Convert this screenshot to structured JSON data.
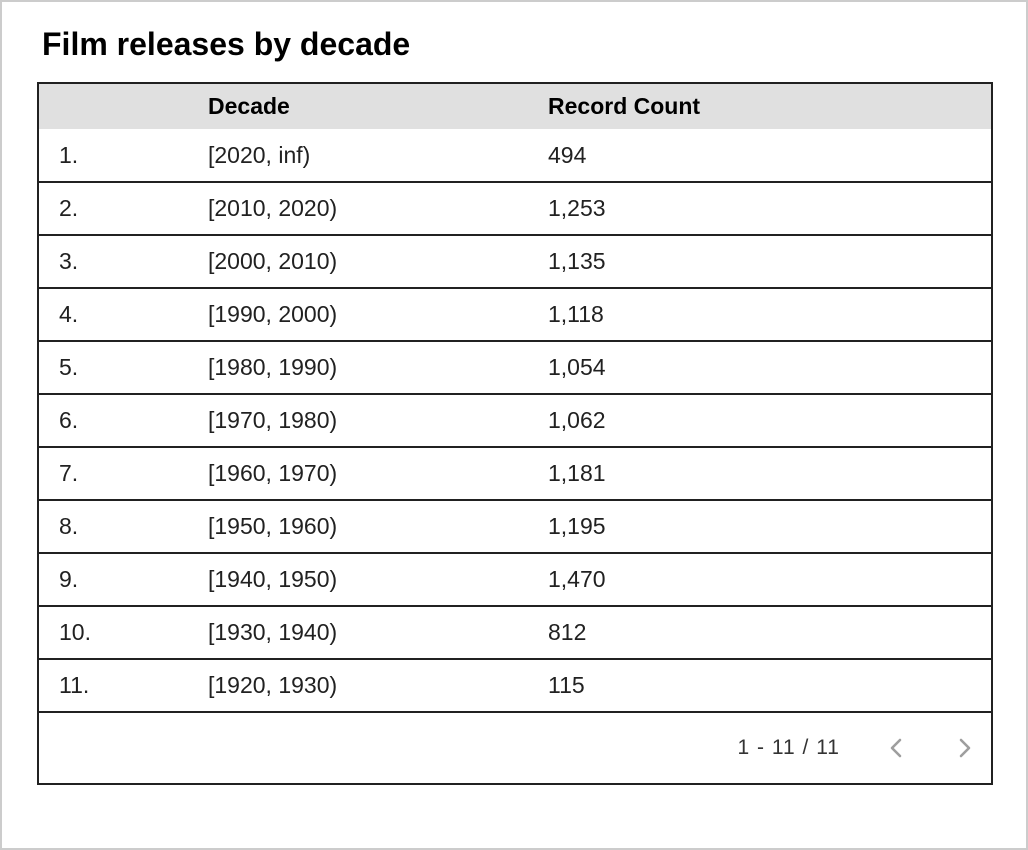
{
  "page": {
    "title": "Film releases by decade",
    "border_color": "#cccccc",
    "background": "#ffffff"
  },
  "table": {
    "header_bg": "#e0e0e0",
    "border_color": "#212121",
    "columns": [
      {
        "key": "index",
        "label": ""
      },
      {
        "key": "decade",
        "label": "Decade"
      },
      {
        "key": "record_count",
        "label": "Record Count"
      }
    ],
    "rows": [
      {
        "index": "1.",
        "decade": "[2020, inf)",
        "record_count": "494"
      },
      {
        "index": "2.",
        "decade": "[2010, 2020)",
        "record_count": "1,253"
      },
      {
        "index": "3.",
        "decade": "[2000, 2010)",
        "record_count": "1,135"
      },
      {
        "index": "4.",
        "decade": "[1990, 2000)",
        "record_count": "1,118"
      },
      {
        "index": "5.",
        "decade": "[1980, 1990)",
        "record_count": "1,054"
      },
      {
        "index": "6.",
        "decade": "[1970, 1980)",
        "record_count": "1,062"
      },
      {
        "index": "7.",
        "decade": "[1960, 1970)",
        "record_count": "1,181"
      },
      {
        "index": "8.",
        "decade": "[1950, 1960)",
        "record_count": "1,195"
      },
      {
        "index": "9.",
        "decade": "[1940, 1950)",
        "record_count": "1,470"
      },
      {
        "index": "10.",
        "decade": "[1930, 1940)",
        "record_count": "812"
      },
      {
        "index": "11.",
        "decade": "[1920, 1930)",
        "record_count": "115"
      }
    ]
  },
  "pagination": {
    "range_label": "1 - 11 / 11",
    "prev_icon": "chevron-left",
    "next_icon": "chevron-right",
    "icon_color": "#9e9e9e"
  },
  "chart_data": {
    "type": "table",
    "title": "Film releases by decade",
    "columns": [
      "Decade",
      "Record Count"
    ],
    "categories": [
      "[2020, inf)",
      "[2010, 2020)",
      "[2000, 2010)",
      "[1990, 2000)",
      "[1980, 1990)",
      "[1970, 1980)",
      "[1960, 1970)",
      "[1950, 1960)",
      "[1940, 1950)",
      "[1930, 1940)",
      "[1920, 1930)"
    ],
    "values": [
      494,
      1253,
      1135,
      1118,
      1054,
      1062,
      1181,
      1195,
      1470,
      812,
      115
    ],
    "pagination": "1 - 11 / 11"
  }
}
